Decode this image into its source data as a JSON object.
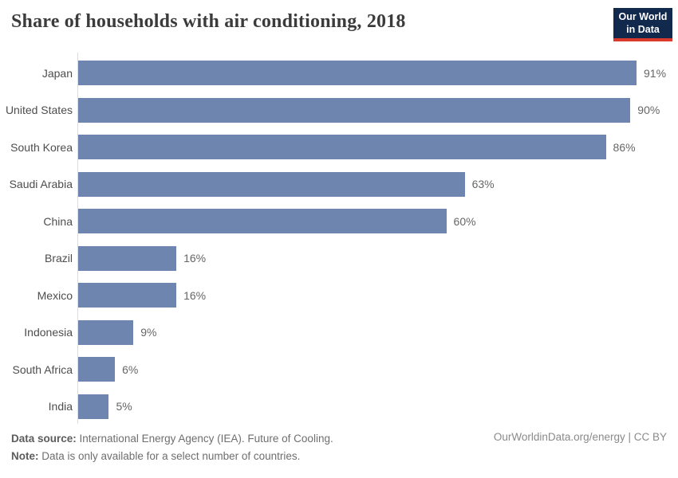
{
  "title": "Share of households with air conditioning, 2018",
  "logo": {
    "line1": "Our World",
    "line2": "in Data"
  },
  "chart_data": {
    "type": "bar",
    "orientation": "horizontal",
    "title": "Share of households with air conditioning, 2018",
    "categories": [
      "Japan",
      "United States",
      "South Korea",
      "Saudi Arabia",
      "China",
      "Brazil",
      "Mexico",
      "Indonesia",
      "South Africa",
      "India"
    ],
    "values": [
      91,
      90,
      86,
      63,
      60,
      16,
      16,
      9,
      6,
      5
    ],
    "value_labels": [
      "91%",
      "90%",
      "86%",
      "63%",
      "60%",
      "16%",
      "16%",
      "9%",
      "6%",
      "5%"
    ],
    "unit": "%",
    "xlim": [
      0,
      100
    ],
    "grid": false,
    "legend": "none",
    "bar_color": "#6e86af"
  },
  "footer": {
    "source_label": "Data source:",
    "source_text": " International Energy Agency (IEA). Future of Cooling.",
    "note_label": "Note:",
    "note_text": " Data is only available for a select number of countries.",
    "link": "OurWorldinData.org/energy | CC BY"
  },
  "colors": {
    "bar": "#6e86af",
    "axis": "#dcdcdc",
    "logo_bg": "#12294e",
    "logo_stripe": "#d93a2b"
  }
}
